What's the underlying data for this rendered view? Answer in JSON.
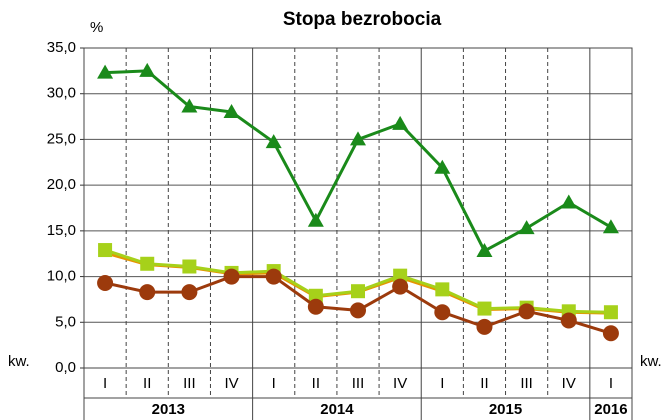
{
  "chart_data": {
    "type": "line",
    "title": "Stopa bezrobocia",
    "y_unit": "%",
    "x_unit_label": "kw.",
    "categories": [
      "I",
      "II",
      "III",
      "IV",
      "I",
      "II",
      "III",
      "IV",
      "I",
      "II",
      "III",
      "IV",
      "I"
    ],
    "year_groups": [
      {
        "label": "2013",
        "count": 4
      },
      {
        "label": "2014",
        "count": 4
      },
      {
        "label": "2015",
        "count": 4
      },
      {
        "label": "2016",
        "count": 1
      }
    ],
    "series": [
      {
        "color": "#1a8a1a",
        "marker": "triangle",
        "values": [
          32.3,
          32.5,
          28.6,
          28.0,
          24.7,
          16.1,
          25.0,
          26.7,
          21.9,
          12.8,
          15.3,
          18.1,
          15.4
        ]
      },
      {
        "color": "#e69500",
        "marker": "none",
        "values": [
          12.6,
          11.3,
          11.0,
          10.3,
          10.4,
          7.8,
          8.3,
          9.9,
          8.4,
          6.4,
          6.5,
          6.1,
          6.0
        ]
      },
      {
        "color": "#a6d11a",
        "marker": "square",
        "values": [
          12.9,
          11.4,
          11.1,
          10.4,
          10.6,
          7.9,
          8.4,
          10.1,
          8.6,
          6.5,
          6.6,
          6.2,
          6.1
        ]
      },
      {
        "color": "#9c3a0c",
        "marker": "circle",
        "values": [
          9.3,
          8.3,
          8.3,
          10.0,
          10.0,
          6.7,
          6.3,
          8.9,
          6.1,
          4.5,
          6.2,
          5.2,
          3.8
        ]
      }
    ],
    "ylim": [
      0,
      35
    ],
    "yticks": [
      {
        "value": 0,
        "label": "0,0"
      },
      {
        "value": 5,
        "label": "5,0"
      },
      {
        "value": 10,
        "label": "10,0"
      },
      {
        "value": 15,
        "label": "15,0"
      },
      {
        "value": 20,
        "label": "20,0"
      },
      {
        "value": 25,
        "label": "25,0"
      },
      {
        "value": 30,
        "label": "30,0"
      },
      {
        "value": 35,
        "label": "35,0"
      }
    ],
    "grid": true
  }
}
